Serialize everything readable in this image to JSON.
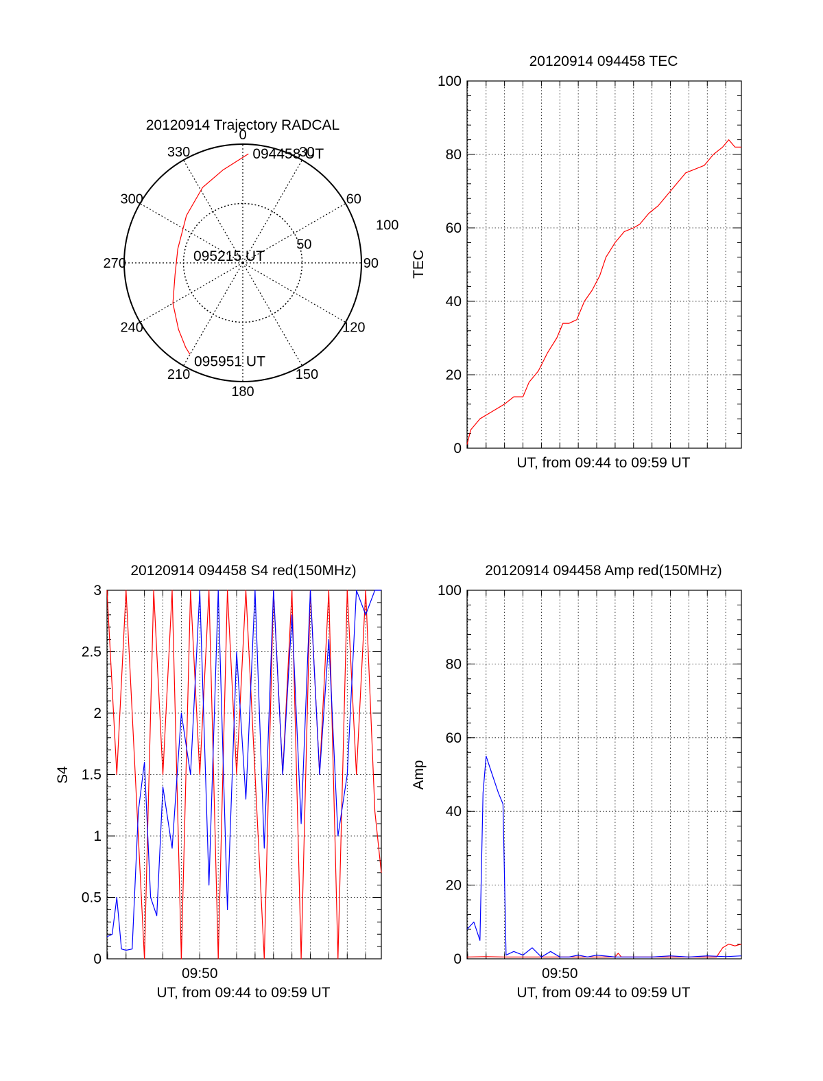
{
  "chart_data": [
    {
      "id": "trajectory",
      "type": "polar",
      "title": "20120914 Trajectory RADCAL",
      "angle_labels": [
        "0",
        "30",
        "60",
        "90",
        "120",
        "150",
        "180",
        "210",
        "240",
        "270",
        "300",
        "330"
      ],
      "radial_ticks": [
        50,
        100
      ],
      "radial_tick_labels": [
        "50",
        "100"
      ],
      "rmax": 100,
      "annotations": [
        {
          "text": "094458 UT",
          "azimuth": 3,
          "radius": 92
        },
        {
          "text": "095215 UT",
          "azimuth": 0,
          "radius": 0
        },
        {
          "text": "095951 UT",
          "azimuth": 210,
          "radius": 89
        }
      ],
      "track": {
        "color": "#ff0000",
        "points": [
          [
            3,
            92
          ],
          [
            348,
            80
          ],
          [
            332,
            72
          ],
          [
            310,
            62
          ],
          [
            282,
            56
          ],
          [
            260,
            58
          ],
          [
            240,
            68
          ],
          [
            224,
            78
          ],
          [
            214,
            86
          ],
          [
            210,
            89
          ]
        ]
      }
    },
    {
      "id": "tec",
      "type": "line",
      "title": "20120914 094458 TEC",
      "xlabel": "UT, from 09:44 to 09:59 UT",
      "ylabel": "TEC",
      "xlim": [
        "09:44:58",
        "09:59:51"
      ],
      "ylim": [
        0,
        100
      ],
      "yticks": [
        "0",
        "20",
        "40",
        "60",
        "80",
        "100"
      ],
      "grid": true,
      "series": [
        {
          "color": "#ff0000",
          "x": [
            "09:44:58",
            "09:45:10",
            "09:45:40",
            "09:46:20",
            "09:47:00",
            "09:47:30",
            "09:48:00",
            "09:48:20",
            "09:48:50",
            "09:49:20",
            "09:49:50",
            "09:50:10",
            "09:50:30",
            "09:50:55",
            "09:51:20",
            "09:51:45",
            "09:52:10",
            "09:52:30",
            "09:53:00",
            "09:53:30",
            "09:54:00",
            "09:54:20",
            "09:54:50",
            "09:55:20",
            "09:55:50",
            "09:56:20",
            "09:56:50",
            "09:57:20",
            "09:57:50",
            "09:58:20",
            "09:58:50",
            "09:59:10",
            "09:59:30",
            "09:59:51"
          ],
          "values": [
            1,
            5,
            8,
            10,
            12,
            14,
            14,
            18,
            21,
            26,
            30,
            34,
            34,
            35,
            40,
            43,
            47,
            52,
            56,
            59,
            60,
            61,
            64,
            66,
            69,
            72,
            75,
            76,
            77,
            80,
            82,
            84,
            82,
            82
          ]
        }
      ]
    },
    {
      "id": "s4",
      "type": "line",
      "title": "20120914 094458 S4 red(150MHz)",
      "xlabel": "UT, from 09:44 to 09:59 UT",
      "ylabel": "S4",
      "xtick_labels": [
        "09:50"
      ],
      "xticks": [
        "09:50:00"
      ],
      "xlim": [
        "09:44:58",
        "09:59:51"
      ],
      "ylim": [
        0,
        3
      ],
      "yticks": [
        "0",
        "0.5",
        "1",
        "1.5",
        "2",
        "2.5",
        "3"
      ],
      "grid": true,
      "series": [
        {
          "color": "#ff0000",
          "x": [
            "09:44:58",
            "09:45:30",
            "09:46:00",
            "09:46:30",
            "09:47:00",
            "09:47:30",
            "09:48:00",
            "09:48:30",
            "09:49:00",
            "09:49:30",
            "09:50:00",
            "09:50:30",
            "09:51:00",
            "09:51:30",
            "09:52:00",
            "09:52:30",
            "09:53:00",
            "09:53:30",
            "09:54:00",
            "09:54:30",
            "09:55:00",
            "09:55:30",
            "09:56:00",
            "09:56:30",
            "09:57:00",
            "09:57:30",
            "09:58:00",
            "09:58:30",
            "09:59:00",
            "09:59:30",
            "09:59:51"
          ],
          "values": [
            3,
            1.5,
            3,
            1.5,
            0,
            3,
            1.5,
            3,
            0,
            3,
            1.5,
            3,
            0,
            3,
            1.5,
            3,
            1.5,
            0,
            3,
            1.5,
            3,
            0,
            3,
            1.5,
            3,
            0,
            3,
            1.5,
            3,
            1.2,
            0.7
          ]
        },
        {
          "color": "#0000ff",
          "x": [
            "09:44:58",
            "09:45:15",
            "09:45:30",
            "09:45:45",
            "09:46:00",
            "09:46:20",
            "09:46:40",
            "09:47:00",
            "09:47:20",
            "09:47:40",
            "09:48:00",
            "09:48:30",
            "09:49:00",
            "09:49:30",
            "09:50:00",
            "09:50:30",
            "09:51:00",
            "09:51:30",
            "09:52:00",
            "09:52:30",
            "09:53:00",
            "09:53:30",
            "09:54:00",
            "09:54:30",
            "09:55:00",
            "09:55:30",
            "09:56:00",
            "09:56:30",
            "09:57:00",
            "09:57:30",
            "09:58:00",
            "09:58:30",
            "09:59:00",
            "09:59:30",
            "09:59:51"
          ],
          "values": [
            0.18,
            0.2,
            0.5,
            0.08,
            0.07,
            0.08,
            1.2,
            1.6,
            0.5,
            0.35,
            1.4,
            0.9,
            2.0,
            1.5,
            3.0,
            0.6,
            3.0,
            0.4,
            2.5,
            1.3,
            3.0,
            0.9,
            3.0,
            1.5,
            2.8,
            1.1,
            3.0,
            1.5,
            2.6,
            1.0,
            1.5,
            3.0,
            2.8,
            3.0,
            3.0
          ]
        }
      ]
    },
    {
      "id": "amp",
      "type": "line",
      "title": "20120914 094458 Amp red(150MHz)",
      "xlabel": "UT, from 09:44 to 09:59 UT",
      "ylabel": "Amp",
      "xtick_labels": [
        "09:50"
      ],
      "xticks": [
        "09:50:00"
      ],
      "xlim": [
        "09:44:58",
        "09:59:51"
      ],
      "ylim": [
        0,
        100
      ],
      "yticks": [
        "0",
        "20",
        "40",
        "60",
        "80",
        "100"
      ],
      "grid": true,
      "series": [
        {
          "color": "#ff0000",
          "x": [
            "09:44:58",
            "09:46:00",
            "09:47:00",
            "09:48:00",
            "09:49:00",
            "09:50:00",
            "09:51:00",
            "09:52:00",
            "09:53:00",
            "09:53:10",
            "09:53:20",
            "09:54:00",
            "09:55:00",
            "09:56:00",
            "09:57:00",
            "09:58:00",
            "09:58:30",
            "09:58:50",
            "09:59:10",
            "09:59:30",
            "09:59:51"
          ],
          "values": [
            0.5,
            0.6,
            0.5,
            0.5,
            0.5,
            0.5,
            0.5,
            0.5,
            0.5,
            1.5,
            0.5,
            0.5,
            0.5,
            0.5,
            0.5,
            0.5,
            0.5,
            3.0,
            4.0,
            3.5,
            4.0
          ]
        },
        {
          "color": "#0000ff",
          "x": [
            "09:44:58",
            "09:45:20",
            "09:45:40",
            "09:45:50",
            "09:46:00",
            "09:46:20",
            "09:46:40",
            "09:46:55",
            "09:47:05",
            "09:47:30",
            "09:48:00",
            "09:48:30",
            "09:49:00",
            "09:49:30",
            "09:50:00",
            "09:50:30",
            "09:51:00",
            "09:51:30",
            "09:52:00",
            "09:53:00",
            "09:54:00",
            "09:55:00",
            "09:56:00",
            "09:57:00",
            "09:58:00",
            "09:59:00",
            "09:59:51"
          ],
          "values": [
            8,
            10,
            5,
            45,
            55,
            50,
            45,
            42,
            1,
            2,
            1,
            3,
            0.5,
            2,
            0.5,
            0.5,
            1,
            0.5,
            1,
            0.5,
            0.5,
            0.5,
            0.8,
            0.5,
            0.8,
            0.6,
            0.8
          ]
        }
      ]
    }
  ]
}
